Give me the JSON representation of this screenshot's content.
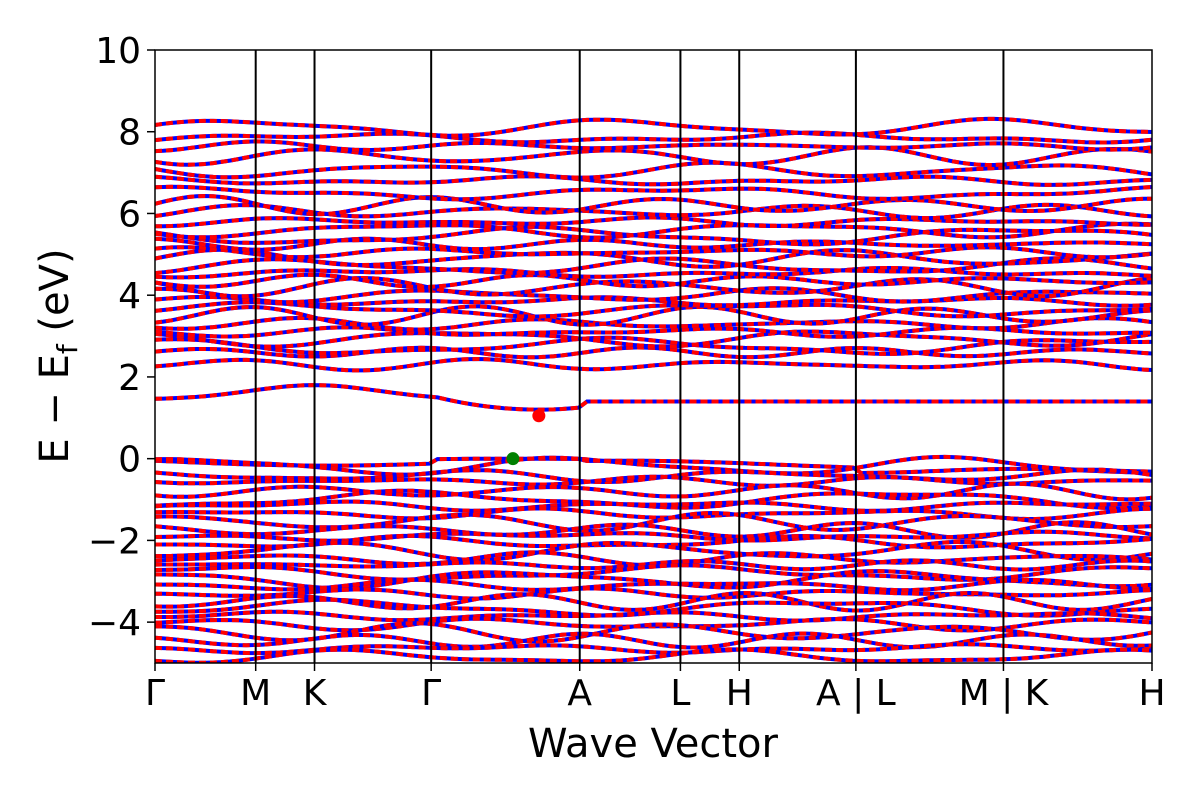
{
  "chart_data": {
    "type": "line",
    "xlabel": "Wave Vector",
    "ylabel": {
      "main": "E − E",
      "sub": "f",
      "unit": " (eV)"
    },
    "ylim": [
      -5,
      10
    ],
    "yticks": [
      {
        "value": 10,
        "label": "10"
      },
      {
        "value": 8,
        "label": "8"
      },
      {
        "value": 6,
        "label": "6"
      },
      {
        "value": 4,
        "label": "4"
      },
      {
        "value": 2,
        "label": "2"
      },
      {
        "value": 0,
        "label": "0"
      },
      {
        "value": -2,
        "label": "−2"
      },
      {
        "value": -4,
        "label": "−4"
      }
    ],
    "xlim": [
      0,
      10
    ],
    "kpoints": [
      {
        "value": 0.0,
        "label": "Γ"
      },
      {
        "value": 1.01,
        "label": "M"
      },
      {
        "value": 1.6,
        "label": "K"
      },
      {
        "value": 2.77,
        "label": "Γ"
      },
      {
        "value": 4.26,
        "label": "A"
      },
      {
        "value": 5.27,
        "label": "L"
      },
      {
        "value": 5.86,
        "label": "H"
      },
      {
        "value": 7.03,
        "label": "A | L"
      },
      {
        "value": 8.51,
        "label": "M | K"
      },
      {
        "value": 10.0,
        "label": "H"
      }
    ],
    "grid": false,
    "legend": "none",
    "series_colors": {
      "spin_up": "#ff0000",
      "spin_down": "#0000ff"
    },
    "markers": [
      {
        "name": "CBM",
        "x": 3.85,
        "y": 1.05,
        "color": "#ff0000"
      },
      {
        "name": "VBM",
        "x": 3.59,
        "y": 0.0,
        "color": "#008000"
      }
    ],
    "bands": {
      "valence": [
        -0.05,
        -0.18,
        -0.42,
        -0.55,
        -0.8,
        -1.0,
        -1.15,
        -1.35,
        -1.55,
        -1.75,
        -1.9,
        -2.05,
        -2.25,
        -2.45,
        -2.6,
        -2.8,
        -2.95,
        -3.1,
        -3.3,
        -3.5,
        -3.65,
        -3.85,
        -4.05,
        -4.25,
        -4.45,
        -4.65,
        -4.85
      ],
      "conduction": [
        1.5,
        2.3,
        2.6,
        2.75,
        2.95,
        3.1,
        3.3,
        3.5,
        3.65,
        3.85,
        4.0,
        4.2,
        4.35,
        4.55,
        4.7,
        4.9,
        5.05,
        5.25,
        5.45,
        5.6,
        5.8,
        6.05,
        6.2,
        6.5,
        6.8,
        7.05,
        7.4,
        7.65,
        7.85,
        8.1
      ]
    }
  }
}
